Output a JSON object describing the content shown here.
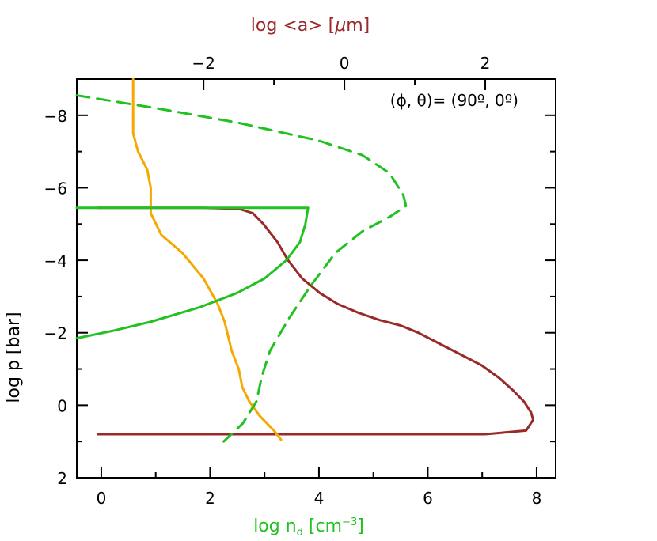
{
  "chart_data": {
    "type": "line",
    "title": "",
    "annotation": "(ϕ,  θ)=  (90º,  0º)",
    "bottom_axis": {
      "label_main": "log n",
      "label_sub": "d",
      "label_unit": " [cm",
      "label_exp": "−3",
      "label_close": "]",
      "color": "#22c122",
      "range": [
        -0.45,
        8.35
      ],
      "ticks": [
        0,
        2,
        4,
        6,
        8
      ],
      "tick_labels": [
        "0",
        "2",
        "4",
        "6",
        "8"
      ]
    },
    "top_axis": {
      "label_main": "log <a> [",
      "label_mu": "μ",
      "label_unit": "m]",
      "color": "#9a2a2a",
      "range": [
        -3.8,
        3.0
      ],
      "ticks": [
        -2,
        0,
        2
      ],
      "tick_labels": [
        "−2",
        "0",
        "2"
      ]
    },
    "left_axis": {
      "label": "log p [bar]",
      "color": "#000000",
      "range": [
        -9.0,
        2.0
      ],
      "inverted": true,
      "ticks": [
        -8,
        -6,
        -4,
        -2,
        0,
        2
      ],
      "tick_labels": [
        "−8",
        "−6",
        "−4",
        "−2",
        "0",
        "2"
      ]
    },
    "series": [
      {
        "name": "",
        "color": "#9a2a2a",
        "style": "solid",
        "axis": "top",
        "points": [
          [
            -3.5,
            -5.45
          ],
          [
            -2.0,
            -5.45
          ],
          [
            -1.5,
            -5.42
          ],
          [
            -1.3,
            -5.3
          ],
          [
            -1.15,
            -5.0
          ],
          [
            -0.95,
            -4.5
          ],
          [
            -0.8,
            -4.0
          ],
          [
            -0.6,
            -3.5
          ],
          [
            -0.35,
            -3.1
          ],
          [
            -0.1,
            -2.8
          ],
          [
            0.2,
            -2.55
          ],
          [
            0.5,
            -2.35
          ],
          [
            0.8,
            -2.2
          ],
          [
            1.05,
            -2.0
          ],
          [
            1.35,
            -1.7
          ],
          [
            1.65,
            -1.4
          ],
          [
            1.95,
            -1.1
          ],
          [
            2.2,
            -0.75
          ],
          [
            2.4,
            -0.4
          ],
          [
            2.55,
            -0.1
          ],
          [
            2.65,
            0.2
          ],
          [
            2.68,
            0.4
          ],
          [
            2.58,
            0.7
          ],
          [
            2.0,
            0.8
          ],
          [
            1.0,
            0.8
          ],
          [
            -1.0,
            0.8
          ],
          [
            -2.5,
            0.8
          ],
          [
            -3.5,
            0.8
          ]
        ]
      },
      {
        "name": "",
        "color": "#f5a800",
        "style": "solid",
        "axis": "top",
        "points": [
          [
            -3.0,
            -9.0
          ],
          [
            -3.0,
            -8.0
          ],
          [
            -3.0,
            -7.5
          ],
          [
            -2.93,
            -7.0
          ],
          [
            -2.8,
            -6.5
          ],
          [
            -2.75,
            -6.0
          ],
          [
            -2.75,
            -5.3
          ],
          [
            -2.6,
            -4.7
          ],
          [
            -2.3,
            -4.2
          ],
          [
            -2.0,
            -3.5
          ],
          [
            -1.8,
            -2.8
          ],
          [
            -1.7,
            -2.3
          ],
          [
            -1.6,
            -1.5
          ],
          [
            -1.5,
            -1.0
          ],
          [
            -1.45,
            -0.5
          ],
          [
            -1.35,
            -0.1
          ],
          [
            -1.2,
            0.3
          ],
          [
            -1.0,
            0.7
          ],
          [
            -0.9,
            0.95
          ]
        ]
      },
      {
        "name": "",
        "color": "#22c122",
        "style": "solid",
        "axis": "bottom",
        "points": [
          [
            -0.45,
            -5.45
          ],
          [
            3.2,
            -5.45
          ],
          [
            3.8,
            -5.45
          ],
          [
            3.75,
            -5.0
          ],
          [
            3.65,
            -4.5
          ],
          [
            3.4,
            -4.0
          ],
          [
            3.0,
            -3.5
          ],
          [
            2.5,
            -3.1
          ],
          [
            1.8,
            -2.7
          ],
          [
            0.9,
            -2.3
          ],
          [
            0.2,
            -2.05
          ],
          [
            -0.45,
            -1.85
          ]
        ]
      },
      {
        "name": "",
        "color": "#22c122",
        "style": "dashed",
        "axis": "bottom",
        "points": [
          [
            -0.45,
            -8.55
          ],
          [
            1.0,
            -8.2
          ],
          [
            2.5,
            -7.8
          ],
          [
            4.0,
            -7.3
          ],
          [
            4.8,
            -6.9
          ],
          [
            5.3,
            -6.4
          ],
          [
            5.55,
            -5.8
          ],
          [
            5.6,
            -5.5
          ],
          [
            5.3,
            -5.2
          ],
          [
            4.8,
            -4.8
          ],
          [
            4.3,
            -4.2
          ],
          [
            3.85,
            -3.3
          ],
          [
            3.45,
            -2.4
          ],
          [
            3.1,
            -1.5
          ],
          [
            2.95,
            -0.8
          ],
          [
            2.85,
            -0.1
          ],
          [
            2.6,
            0.5
          ],
          [
            2.25,
            1.0
          ]
        ]
      }
    ]
  }
}
